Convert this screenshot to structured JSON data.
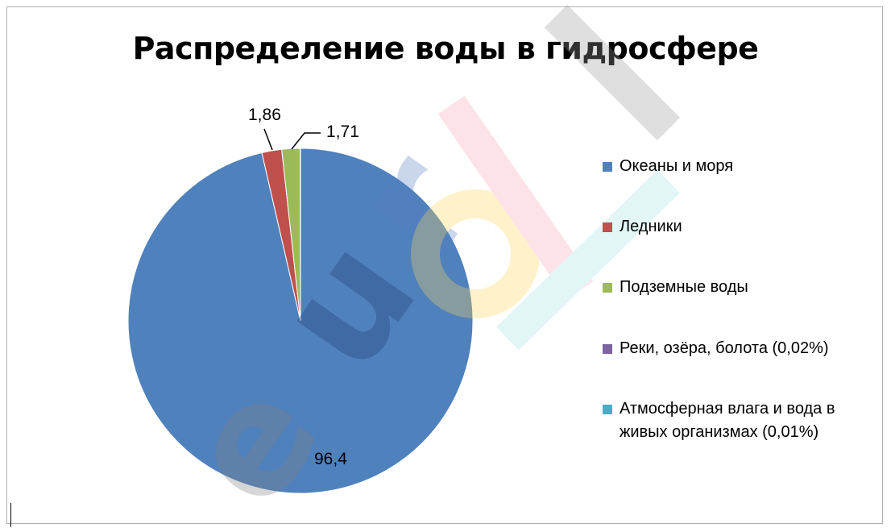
{
  "chart_data": {
    "type": "pie",
    "title": "Распределение воды в гидросфере",
    "slices": [
      {
        "name": "Океаны и моря",
        "value": 96.4,
        "label": "96,4",
        "color": "#4F81BD"
      },
      {
        "name": "Ледники",
        "value": 1.86,
        "label": "1,86",
        "color": "#C0504D"
      },
      {
        "name": "Подземные воды",
        "value": 1.71,
        "label": "1,71",
        "color": "#9BBB59"
      },
      {
        "name": "Реки, озёра, болота (0,02%)",
        "value": 0.02,
        "label": "",
        "color": "#8064A2"
      },
      {
        "name": "Атмосферная влага и вода в живых организмах (0,01%)",
        "value": 0.01,
        "label": "",
        "color": "#4BACC6"
      }
    ],
    "legend_position": "right"
  },
  "watermark": {
    "text": "eurokı",
    "name": "eurok-watermark"
  }
}
